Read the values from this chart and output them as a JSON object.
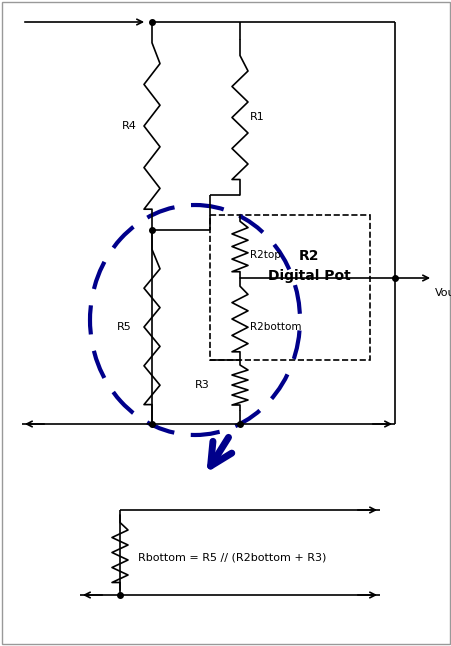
{
  "background_color": "#ffffff",
  "border_color": "#999999",
  "wire_color": "#000000",
  "resistor_color": "#000000",
  "dashed_ellipse_color": "#00008B",
  "arrow_color": "#00008B",
  "dashed_box_color": "#000000",
  "R2_label_line1": "R2",
  "R2_label_line2": "Digital Pot",
  "R1_label": "R1",
  "R4_label": "R4",
  "R5_label": "R5",
  "R2top_label": "R2top",
  "R2bottom_label": "R2bottom",
  "R3_label": "R3",
  "Vout_label": "Vout",
  "Rbottom_label": "Rbottom = R5 // (R2bottom + R3)",
  "figsize": [
    4.52,
    6.46
  ],
  "dpi": 100
}
